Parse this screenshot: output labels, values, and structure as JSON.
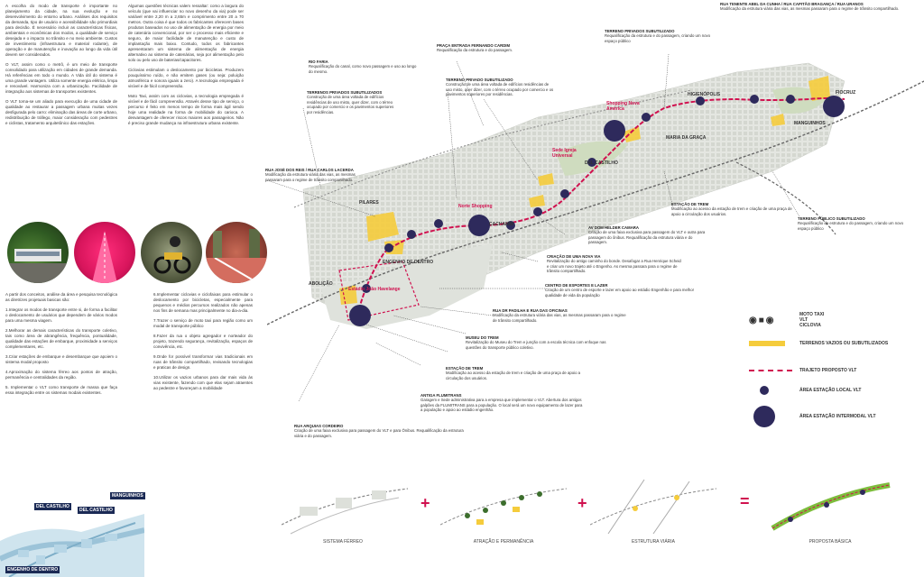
{
  "left_column": {
    "p1": "A escolha do modo de transporte é importante no planejamento da cidade, na sua evolução e no desenvolvimento do entorno urbano. Análises dos requisitos da demanda, tipo de usuário e acessibilidade são primordiais para decisão. É necessário incluir as características físicas, ambientais e econômicas dos modos, a qualidade de serviço desejada e o impacto no trânsito e no meio ambiente. Custos de investimento (infraestrutura e material rodante), de operação e de manutenção e inovação ao longo da vida útil devem ser considerados.",
    "p2": "O VLT, assim como o metrô, é um meio de transporte consolidado para utilização em cidades de grande demanda. Há referências em todo o mundo. A Vida útil do sistema é uma grande vantagem. Utiliza somente energia elétrica, limpa e renovável. Harmoniza com a urbanização. Facilidade de integração aos sistemas de transportes existentes.",
    "p3": "O VLT torna-se um aliado para execução de uma cidade de qualidade ao restaurar a passagem urbana muitas vezes desfigurada pelo carro: eliminação das áreas de corte urbano, redistribuição de tráfego, maior consideração com pedestres e ciclistas, tratamento arquitetônico das estações."
  },
  "middle_column": {
    "p1": "Algumas questões técnicas valem ressaltar: como a largura do veículo (que vai influenciar no novo desenho da via) pode ser variável entre 2,20 m a 2,65m e comprimento entre 20 a 70 metros. Outra coisa é que todos os fabricantes oferecem bases produtos baseados no uso de alimentação de energia por meio de catenária convencional, por ser o processo mais eficiente e seguro, de maior facilidade de manutenção e custo de implantação mais baixo. Contudo, todos os fabricantes apresentaram um sistema de alimentação de energia alternativo ao sistema de catenárias, seja por alimentação pelo solo ou pelo uso de baterias/capacitores.",
    "p2": "Ciclovias estimulam o deslocamento por bicicletas. Produzem pouquíssimo ruído, e não emitem gases (ou seja: poluição atmosférica e sonora iguais a zero). A tecnologia empregada é visível e de fácil compreensão.",
    "p3": "Moto Taxi, assim com as ciclovias, a tecnologia empregada é visível e de fácil compreensão. Através desse tipo de serviço, o percurso é feito em menos tempo de forma mais ágil sendo hoje uma realidade na forma de mobilidade do carioca. A desvantagem de oferecer riscos maiores aos passageiros. Não é preciso grande mudança na infraestrutura urbana existente."
  },
  "guidelines_left": {
    "intro": "A partir dos conceitos, análise da área e pesquisa tecnológica as diretrizes projetuais basicas são:",
    "items": [
      "1.Integrar os modos de transporte entre si, de forma a facilitar o deslocamento de usuários que dependem de vários modos para uma mesma viagem.",
      "2.Melhorar as demais características do transporte coletivo, tais como área de abrangência, frequência, pontualidade, qualidade das estações de embarque, proximidade a serviços complementares, etc.",
      "3.Criar estações de embarque e desembarque que apoiem o sistema modal proposto",
      "4.Aproximação do sistema férreo aos pontos de atração, permanência e centralidades da região.",
      "5. Implementar o VLT como transporte de massa que faça essa integração entre os sistemas modais existentes."
    ]
  },
  "guidelines_right": {
    "items": [
      "6.Implementar ciclovias e ciclofaixas para estimular o deslocamento por bicicletas, especialmente para pequenos e médios percursos realizados não apenas nos fins de semana mas principalmente no dia-a-dia.",
      "7.Trazer o serviço de moto taxi para região como um modal de transporte público",
      "8.Fazer da rua o objeto agregador e norteador do projeto, trazendo segurança, revitalização, espaços de convivência, etc.",
      "9.Onde for possível transformar vias tradicionais em ruas de trânsito compartilhado, revisando tecnologias e praticas de design.",
      "10.Utilizar os vazios urbanos para dar mais vida às vias existente, fazendo com que elas sejam atraentes ao pedestre e favoreçam a mobilidade"
    ]
  },
  "annotations": [
    {
      "title": "Rua Tenente Abel da Cunha / Rua Capitão Bragança / Rua Uranos",
      "body": "Modificação da estrutura viária das vias, as mesmas passaram para o regime de trânsito compartilhado."
    },
    {
      "title": "Terreno privados subutilizado",
      "body": "Requalificação da estrutura e do passagem, criando um novo espaço público"
    },
    {
      "title": "Praça Entrada Fernando Cardim",
      "body": "Requalificação da estrutura e do passagem."
    },
    {
      "title": "Rio Faria",
      "body": "Requalificação do canal, como novo passagem e uso ao longo do mesmo."
    },
    {
      "title": "Terreno privado subutilizado",
      "body": "Construção de uma área voltada de edifícios residências de uso misto, quer dizer, com o térreo ocupado por comercio e os pavimentos superiores por residências."
    },
    {
      "title": "Terrenos privados subutilizados",
      "body": "Construção de uma área voltada de edifícios residências de uso misto, quer dizer, com o térreo ocupado por comercio e os pavimentos superiores por residências."
    },
    {
      "title": "Rua José dos Reis / Rua Carlos Lacerda",
      "body": "Modificação da estrutura viária das vias, as mesmas passaram para o regime de trânsito compartilhado."
    },
    {
      "title": "Estação de trem",
      "body": "Modificação ao acesso da estação de trem e criação de uma praça de apoio a circulação dos usuários."
    },
    {
      "title": "Terreno público subutilizado",
      "body": "Requalificação da estrutura e do passagem, criando um novo espaço público"
    },
    {
      "title": "Av Dom Helder Camara",
      "body": "Criação de uma faixa exclusiva para passagem do VLT e outra para passagem do ônibus. Requalificação da estrutura viária e do passagem."
    },
    {
      "title": "Criação de uma nova via",
      "body": "Revitalização do antigo caminho do bonde. Desafogar a Rua Henrique Scheid e criar um novo trajeto até o Engenho. As mesma passara para o regime de trânsito compartilhado."
    },
    {
      "title": "Centro de esportes e lazer",
      "body": "Criação de um centro de esporte e lazer em apoio ao estádio Engenhão e para melhor qualidade de vida da população"
    },
    {
      "title": "Rua Dr Padilha e Rua Das Oficinas",
      "body": "Modificação da estrutura viária das vias, as mesmas passaram para o regime de trânsito compartilhado."
    },
    {
      "title": "Museu do Trem",
      "body": "Revitalização do Museu do Trem e junção com a escola técnica com enfoque nas questões do transporte público coletivo."
    },
    {
      "title": "Estação de trem",
      "body": "Modificação ao acesso da estação de trem e criação de uma praça de apoio a circulação dos usuários."
    },
    {
      "title": "Antiga Flumitrans",
      "body": "Garagem e Sede administrativa para a empresa que implementar o VLT. Abertura dos antigos galpões da FLUMITRANS para a população. O local será um novo equipamento de lazer para a população e apoio ao estádio engenhão."
    },
    {
      "title": "Rua Arquias Cordeiro",
      "body": "Criação de uma faixa exclusiva para passagem do VLT e para Ônibus. Requalificação da estrutura viária e do passagem."
    }
  ],
  "map_labels": {
    "fiocruz": "FIOCRUZ",
    "manguinhos": "MANGUINHOS",
    "higienopolis": "HIGIENÓPOLIS",
    "maria_da_graca": "MARIA DA GRAÇA",
    "del_castilho": "DEL CASTILHO",
    "cachambi": "CACHAMBI",
    "pilares": "PILARES",
    "engenho_de_dentro": "ENGENHO DE DENTRO",
    "abolicao": "ABOLIÇÃO",
    "shopping_nova_america": "Shopping Nova América",
    "norte_shopping": "Norte Shopping",
    "igreja_universal": "Sede Igreja Universal",
    "estadio": "Estádio João Havelange"
  },
  "legend": {
    "moto_taxi": "MOTO TAXI",
    "vlt": "VLT",
    "ciclovia": "CICLOVIA",
    "terrenos": "TERRENOS VAZIOS OU SUBUTILIZADOS",
    "trajeto": "TRAJETO PROPOSTO VLT",
    "area_local": "ÁREA ESTAÇÃO LOCAL VLT",
    "area_intermodal": "ÁREA ESTAÇÃO INTERMODAL VLT",
    "colors": {
      "terrenos": "#f5cc3c",
      "trajeto": "#d0114f",
      "station": "#2e2a5c"
    }
  },
  "bottom_map_labels": {
    "manguinhos": "MANGUINHOS",
    "del_castilho_1": "DEL CASTILHO",
    "del_castilho_2": "DEL CASTILHO",
    "engenho": "ENGENHO DE DENTRO"
  },
  "steps": [
    {
      "label": "SISTEMA FÉRREO"
    },
    {
      "label": "ATRAÇÃO E PERMANÊNCIA"
    },
    {
      "label": "ESTRUTURA VIÁRIA"
    },
    {
      "label": "PROPOSTA BÁSICA"
    }
  ],
  "operators": {
    "plus1": "+",
    "plus2": "+",
    "equals": "="
  }
}
